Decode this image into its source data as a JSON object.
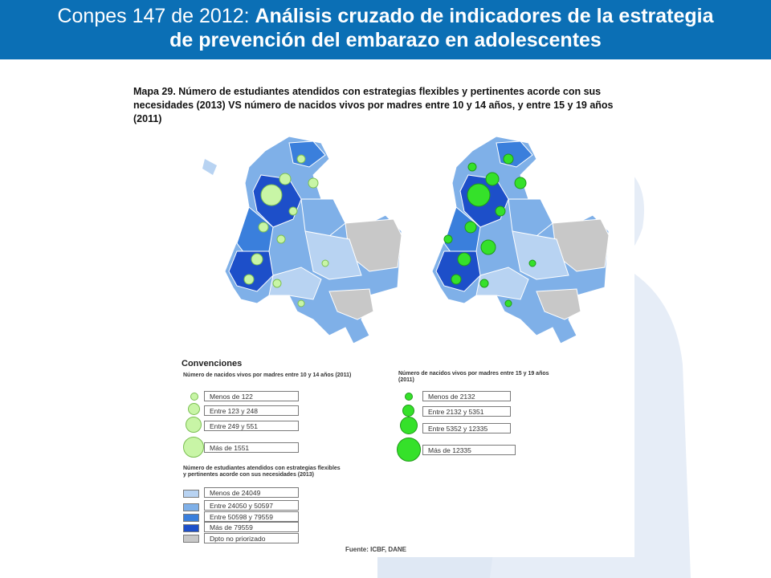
{
  "header": {
    "title_plain": "Conpes 147 de 2012: ",
    "title_bold_line1": "Análisis cruzado de indicadores de la estrategia",
    "title_bold_line2": "de prevención del embarazo en adolescentes"
  },
  "map": {
    "title": "Mapa 29. Número de estudiantes atendidos con estrategias flexibles y pertinentes acorde con sus necesidades (2013) VS número de nacidos vivos por madres entre 10 y 14 años, y entre 15 y 19 años (2011)",
    "source": "Fuente: ICBF, DANE"
  },
  "legend": {
    "title": "Convenciones",
    "group1": {
      "title": "Número de nacidos vivos por madres entre 10 y 14 años (2011)",
      "color": "#c8f5a6",
      "items": [
        "Menos de 122",
        "Entre 123 y 248",
        "Entre 249 y 551",
        "Más de 1551"
      ]
    },
    "group2": {
      "title": "Número de nacidos vivos por madres entre 15 y 19 años (2011)",
      "color": "#35e12a",
      "items": [
        "Menos de 2132",
        "Entre 2132 y 5351",
        "Entre 5352 y 12335",
        "Más de 12335"
      ]
    },
    "group3": {
      "title": "Número de estudiantes atendidos con estrategias flexibles y pertinentes acorde con sus necesidades (2013)",
      "items": [
        {
          "label": "Menos de 24049",
          "color": "#b8d3f2"
        },
        {
          "label": "Entre 24050 y 50597",
          "color": "#7fb0e8"
        },
        {
          "label": "Entre 50598 y 79559",
          "color": "#3a7fdc"
        },
        {
          "label": "Más de 79559",
          "color": "#1d4fc9"
        },
        {
          "label": "Dpto no priorizado",
          "color": "#c8c8c8"
        }
      ]
    }
  },
  "colors": {
    "header": "#0b6fb5",
    "figure": "#dfe8f4"
  }
}
